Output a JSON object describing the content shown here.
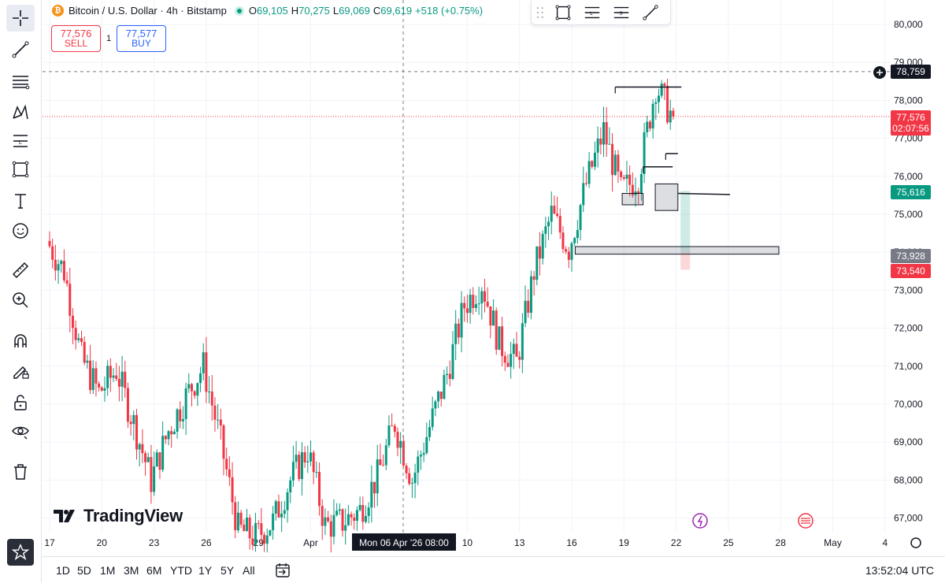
{
  "header": {
    "symbol_title": "Bitcoin / U.S. Dollar · 4h · Bitstamp",
    "coin_glyph": "₿",
    "open_key": "O",
    "open": "69,105",
    "high_key": "H",
    "high": "70,275",
    "low_key": "L",
    "low": "69,069",
    "close_key": "C",
    "close": "69,619",
    "change": "+518 (+0.75%)"
  },
  "trade": {
    "sell_price": "77,576",
    "sell_label": "SELL",
    "quantity": "1",
    "buy_price": "77,577",
    "buy_label": "BUY"
  },
  "logo": {
    "text": "TradingView"
  },
  "crosshair_label": "Mon 06 Apr '26   08:00",
  "price_labels": {
    "crosshair": "78,759",
    "last": "77,576",
    "countdown": "02:07:56",
    "level_green": "75,616",
    "level_gray": "73,928",
    "level_red": "73,540"
  },
  "bottom": {
    "ranges": [
      "1D",
      "5D",
      "1M",
      "3M",
      "6M",
      "YTD",
      "1Y",
      "5Y",
      "All"
    ],
    "clock": "13:52:04 UTC"
  },
  "colors": {
    "up": "#089981",
    "down": "#f23645",
    "accent": "#2962ff"
  },
  "chart_data": {
    "type": "candlestick",
    "symbol": "BTCUSD",
    "interval": "4h",
    "y_ticks": [
      80000,
      79000,
      78000,
      77000,
      76000,
      75000,
      74000,
      73000,
      72000,
      71000,
      70000,
      69000,
      68000,
      67000
    ],
    "y_tick_labels": [
      "80,000",
      "79,000",
      "78,000",
      "77,000",
      "76,000",
      "75,000",
      "74,000",
      "73,000",
      "72,000",
      "71,000",
      "70,000",
      "69,000",
      "68,000",
      "67,000"
    ],
    "ylim": [
      66500,
      80500
    ],
    "x_tick_labels": [
      "17",
      "20",
      "23",
      "26",
      "29",
      "Apr",
      "10",
      "13",
      "16",
      "19",
      "22",
      "25",
      "28",
      "May",
      "4"
    ],
    "x_tick_days": [
      0,
      3,
      6,
      9,
      12,
      15,
      24,
      27,
      30,
      33,
      36,
      39,
      42,
      45,
      48
    ],
    "xlim_days": [
      0,
      49
    ],
    "daily_closes_anchor": [
      [
        0,
        74300
      ],
      [
        1,
        73500
      ],
      [
        2,
        71200
      ],
      [
        3,
        70300
      ],
      [
        4,
        70900
      ],
      [
        5,
        69500
      ],
      [
        6,
        68000
      ],
      [
        7,
        69300
      ],
      [
        8,
        70200
      ],
      [
        9,
        71000
      ],
      [
        10,
        69000
      ],
      [
        11,
        66700
      ],
      [
        12,
        66500
      ],
      [
        13,
        66900
      ],
      [
        14,
        68000
      ],
      [
        15,
        68800
      ],
      [
        16,
        66800
      ],
      [
        17,
        66900
      ],
      [
        18,
        67200
      ],
      [
        19,
        68100
      ],
      [
        20,
        69500
      ],
      [
        21,
        68000
      ],
      [
        22,
        69400
      ],
      [
        23,
        70800
      ],
      [
        24,
        72600
      ],
      [
        25,
        73200
      ],
      [
        26,
        71600
      ],
      [
        27,
        71100
      ],
      [
        28,
        73500
      ],
      [
        29,
        75000
      ],
      [
        30,
        74100
      ],
      [
        31,
        75800
      ],
      [
        32,
        77200
      ],
      [
        33,
        75600
      ],
      [
        34,
        76000
      ],
      [
        35,
        78400
      ],
      [
        35.9,
        77600
      ]
    ],
    "last_price": 77576,
    "crosshair_price": 78759,
    "zones": [
      {
        "kind": "box",
        "from_day": 34.8,
        "to_day": 36.1,
        "low": 75100,
        "high": 75800
      },
      {
        "kind": "box",
        "from_day": 32.9,
        "to_day": 34.1,
        "low": 75250,
        "high": 75550
      },
      {
        "kind": "box",
        "from_day": 30.2,
        "to_day": 41.9,
        "low": 73950,
        "high": 74150
      }
    ],
    "lines": [
      {
        "from_day": 32.5,
        "to_day": 36.3,
        "price": 78350
      },
      {
        "from_day": 34.1,
        "to_day": 35.8,
        "price": 76250
      },
      {
        "from_day": 35.4,
        "to_day": 36.1,
        "price": 76600
      },
      {
        "from_day": 36.1,
        "to_day": 39.1,
        "price": 75550,
        "to_price": 75520
      }
    ],
    "position_tool": {
      "day": 36.3,
      "entry": 75616,
      "target": 75600,
      "stop": 73540
    },
    "grid": true
  }
}
